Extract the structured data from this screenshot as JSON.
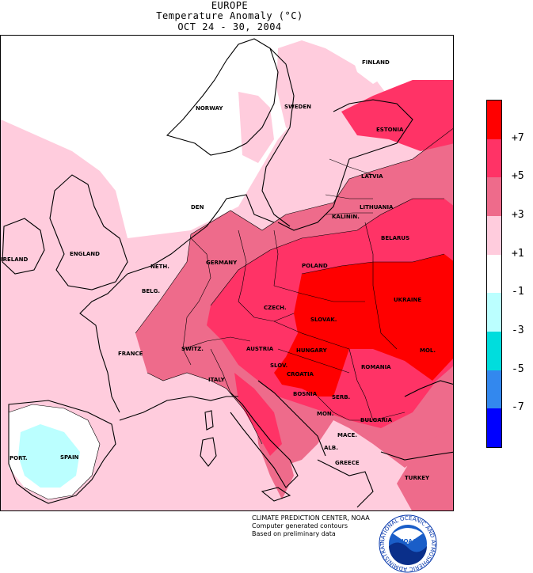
{
  "header": {
    "region": "EUROPE",
    "title": "Temperature Anomaly (°C)",
    "period": "OCT 24 - 30, 2004"
  },
  "legend": {
    "ticks": [
      "+7",
      "+5",
      "+3",
      "+1",
      "-1",
      "-3",
      "-5",
      "-7"
    ],
    "bins": [
      {
        "color": "#ff0000"
      },
      {
        "color": "#ff3366"
      },
      {
        "color": "#ee6b8b"
      },
      {
        "color": "#ffccdd"
      },
      {
        "color": "#ffffff"
      },
      {
        "color": "#bbffff"
      },
      {
        "color": "#00dddd"
      },
      {
        "color": "#3388ee"
      },
      {
        "color": "#0000ff"
      }
    ]
  },
  "countries": [
    "FINLAND",
    "NORWAY",
    "SWEDEN",
    "ESTONIA",
    "LATVIA",
    "DEN",
    "LITHUANIA",
    "KALININ.",
    "BELARUS",
    "IRELAND",
    "ENGLAND",
    "NETH.",
    "BELG.",
    "GERMANY",
    "POLAND",
    "CZECH.",
    "UKRAINE",
    "SLOVAK.",
    "FRANCE",
    "SWITZ.",
    "AUSTRIA",
    "HUNGARY",
    "SLOV.",
    "MOL.",
    "ROMANIA",
    "CROATIA",
    "ITALY",
    "BOSNIA",
    "SERB.",
    "BULGARIA",
    "MON.",
    "MACE.",
    "ALB.",
    "PORT.",
    "SPAIN",
    "GREECE",
    "TURKEY"
  ],
  "credits": {
    "line1": "CLIMATE PREDICTION CENTER, NOAA",
    "line2": "Computer generated contours",
    "line3": "Based on preliminary data",
    "logo_text": "NOAA",
    "logo_ring": "NATIONAL OCEANIC AND ATMOSPHERIC ADMINISTRATION · U.S. DEPARTMENT OF COMMERCE ·"
  }
}
